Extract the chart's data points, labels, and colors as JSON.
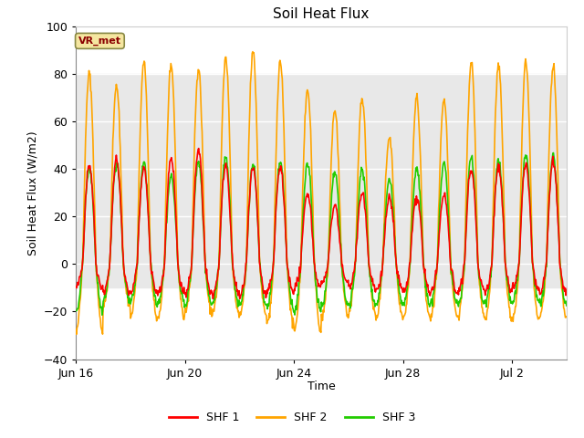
{
  "title": "Soil Heat Flux",
  "ylabel": "Soil Heat Flux (W/m2)",
  "xlabel": "Time",
  "ylim": [
    -40,
    100
  ],
  "yticks": [
    -40,
    -20,
    0,
    20,
    40,
    60,
    80,
    100
  ],
  "shaded_band_low": -10,
  "shaded_band_high": 80,
  "series": {
    "SHF 1": {
      "color": "#ff0000",
      "linewidth": 1.2
    },
    "SHF 2": {
      "color": "#ffa500",
      "linewidth": 1.2
    },
    "SHF 3": {
      "color": "#22cc00",
      "linewidth": 1.2
    }
  },
  "vr_met_label": "VR_met",
  "vr_met_color": "#8B0000",
  "vr_met_bg": "#f5e6a0",
  "background_color": "#ffffff",
  "plot_bg": "#e8e8e8",
  "grid_color": "#ffffff",
  "num_days": 18,
  "points_per_day": 48,
  "xtick_dates": [
    "Jun 16",
    "Jun 20",
    "Jun 24",
    "Jun 28",
    "Jul 2"
  ],
  "xtick_offsets_days": [
    0,
    4,
    8,
    12,
    16
  ]
}
